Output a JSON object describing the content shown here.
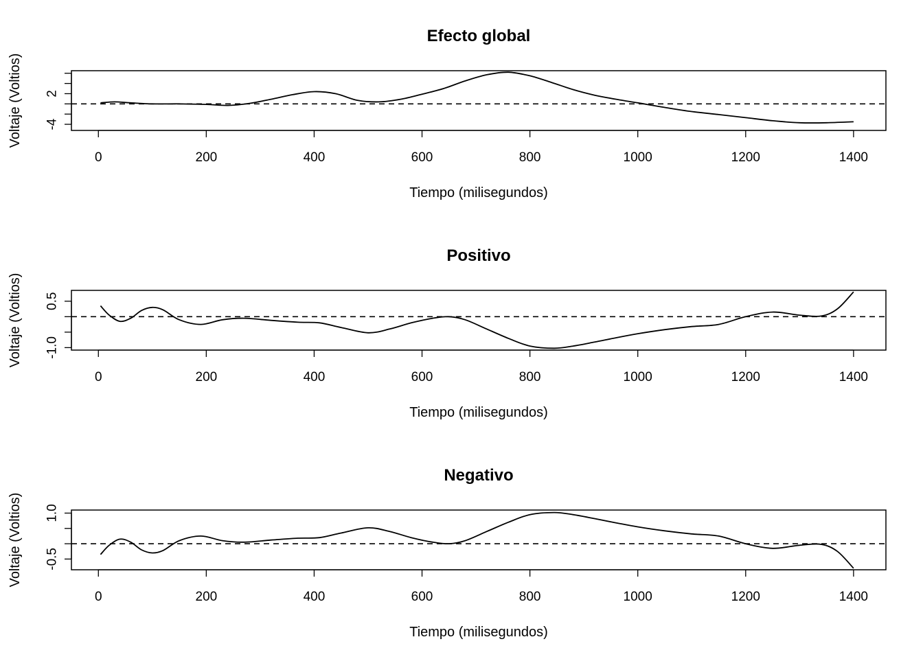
{
  "chart_data": [
    {
      "type": "line",
      "title": "Efecto global",
      "xlabel": "Tiempo (milisegundos)",
      "ylabel": "Voltaje (Voltios)",
      "xlim": [
        -50,
        1460
      ],
      "ylim": [
        -5.2,
        6.5
      ],
      "x_ticks": [
        0,
        200,
        400,
        600,
        800,
        1000,
        1200,
        1400
      ],
      "y_ticks": [
        -4,
        -2,
        0,
        2,
        4,
        6
      ],
      "y_tick_labels": [
        "-4",
        "",
        "",
        "2",
        "",
        ""
      ],
      "reference_line": 0,
      "x": [
        4,
        30,
        60,
        100,
        150,
        200,
        240,
        280,
        320,
        360,
        400,
        440,
        480,
        520,
        560,
        600,
        640,
        680,
        720,
        760,
        800,
        840,
        880,
        920,
        960,
        1000,
        1050,
        1100,
        1150,
        1200,
        1250,
        1300,
        1350,
        1400
      ],
      "values": [
        0.2,
        0.4,
        0.2,
        0.0,
        0.0,
        -0.1,
        -0.3,
        0.1,
        0.9,
        1.8,
        2.4,
        2.0,
        0.7,
        0.4,
        0.9,
        1.9,
        3.0,
        4.5,
        5.7,
        6.2,
        5.5,
        4.2,
        2.8,
        1.7,
        0.9,
        0.2,
        -0.7,
        -1.5,
        -2.1,
        -2.7,
        -3.3,
        -3.7,
        -3.7,
        -3.5
      ]
    },
    {
      "type": "line",
      "title": "Positivo",
      "xlabel": "Tiempo (milisegundos)",
      "ylabel": "Voltaje (Voltios)",
      "xlim": [
        -50,
        1460
      ],
      "ylim": [
        -1.08,
        0.85
      ],
      "x_ticks": [
        0,
        200,
        400,
        600,
        800,
        1000,
        1200,
        1400
      ],
      "y_ticks": [
        -1.0,
        -0.5,
        0.0,
        0.5
      ],
      "y_tick_labels": [
        "-1.0",
        "",
        "",
        "0.5"
      ],
      "reference_line": 0,
      "x": [
        4,
        20,
        40,
        60,
        80,
        100,
        120,
        150,
        190,
        230,
        270,
        320,
        370,
        410,
        450,
        500,
        540,
        580,
        620,
        650,
        680,
        720,
        760,
        800,
        845,
        880,
        920,
        960,
        1000,
        1050,
        1100,
        1150,
        1200,
        1250,
        1300,
        1340,
        1370,
        1400
      ],
      "values": [
        0.35,
        0.05,
        -0.15,
        -0.05,
        0.2,
        0.3,
        0.22,
        -0.1,
        -0.25,
        -0.1,
        -0.05,
        -0.12,
        -0.18,
        -0.2,
        -0.35,
        -0.52,
        -0.4,
        -0.2,
        -0.05,
        0.0,
        -0.1,
        -0.4,
        -0.7,
        -0.95,
        -1.02,
        -0.95,
        -0.82,
        -0.68,
        -0.55,
        -0.42,
        -0.32,
        -0.25,
        0.0,
        0.15,
        0.05,
        0.02,
        0.25,
        0.8
      ]
    },
    {
      "type": "line",
      "title": "Negativo",
      "xlabel": "Tiempo (milisegundos)",
      "ylabel": "Voltaje (Voltios)",
      "xlim": [
        -50,
        1460
      ],
      "ylim": [
        -0.85,
        1.1
      ],
      "x_ticks": [
        0,
        200,
        400,
        600,
        800,
        1000,
        1200,
        1400
      ],
      "y_ticks": [
        -0.5,
        0.0,
        0.5,
        1.0
      ],
      "y_tick_labels": [
        "-0.5",
        "",
        "",
        "1.0"
      ],
      "reference_line": 0,
      "x": [
        4,
        20,
        40,
        60,
        80,
        100,
        120,
        150,
        190,
        230,
        270,
        320,
        370,
        410,
        450,
        500,
        540,
        580,
        620,
        650,
        680,
        720,
        760,
        800,
        845,
        880,
        920,
        960,
        1000,
        1050,
        1100,
        1150,
        1200,
        1250,
        1300,
        1340,
        1370,
        1400
      ],
      "values": [
        -0.35,
        -0.05,
        0.15,
        0.05,
        -0.2,
        -0.3,
        -0.22,
        0.1,
        0.25,
        0.1,
        0.05,
        0.12,
        0.18,
        0.2,
        0.35,
        0.52,
        0.4,
        0.2,
        0.05,
        0.0,
        0.1,
        0.4,
        0.7,
        0.95,
        1.02,
        0.95,
        0.82,
        0.68,
        0.55,
        0.42,
        0.32,
        0.25,
        0.0,
        -0.15,
        -0.05,
        -0.02,
        -0.25,
        -0.8
      ]
    }
  ]
}
